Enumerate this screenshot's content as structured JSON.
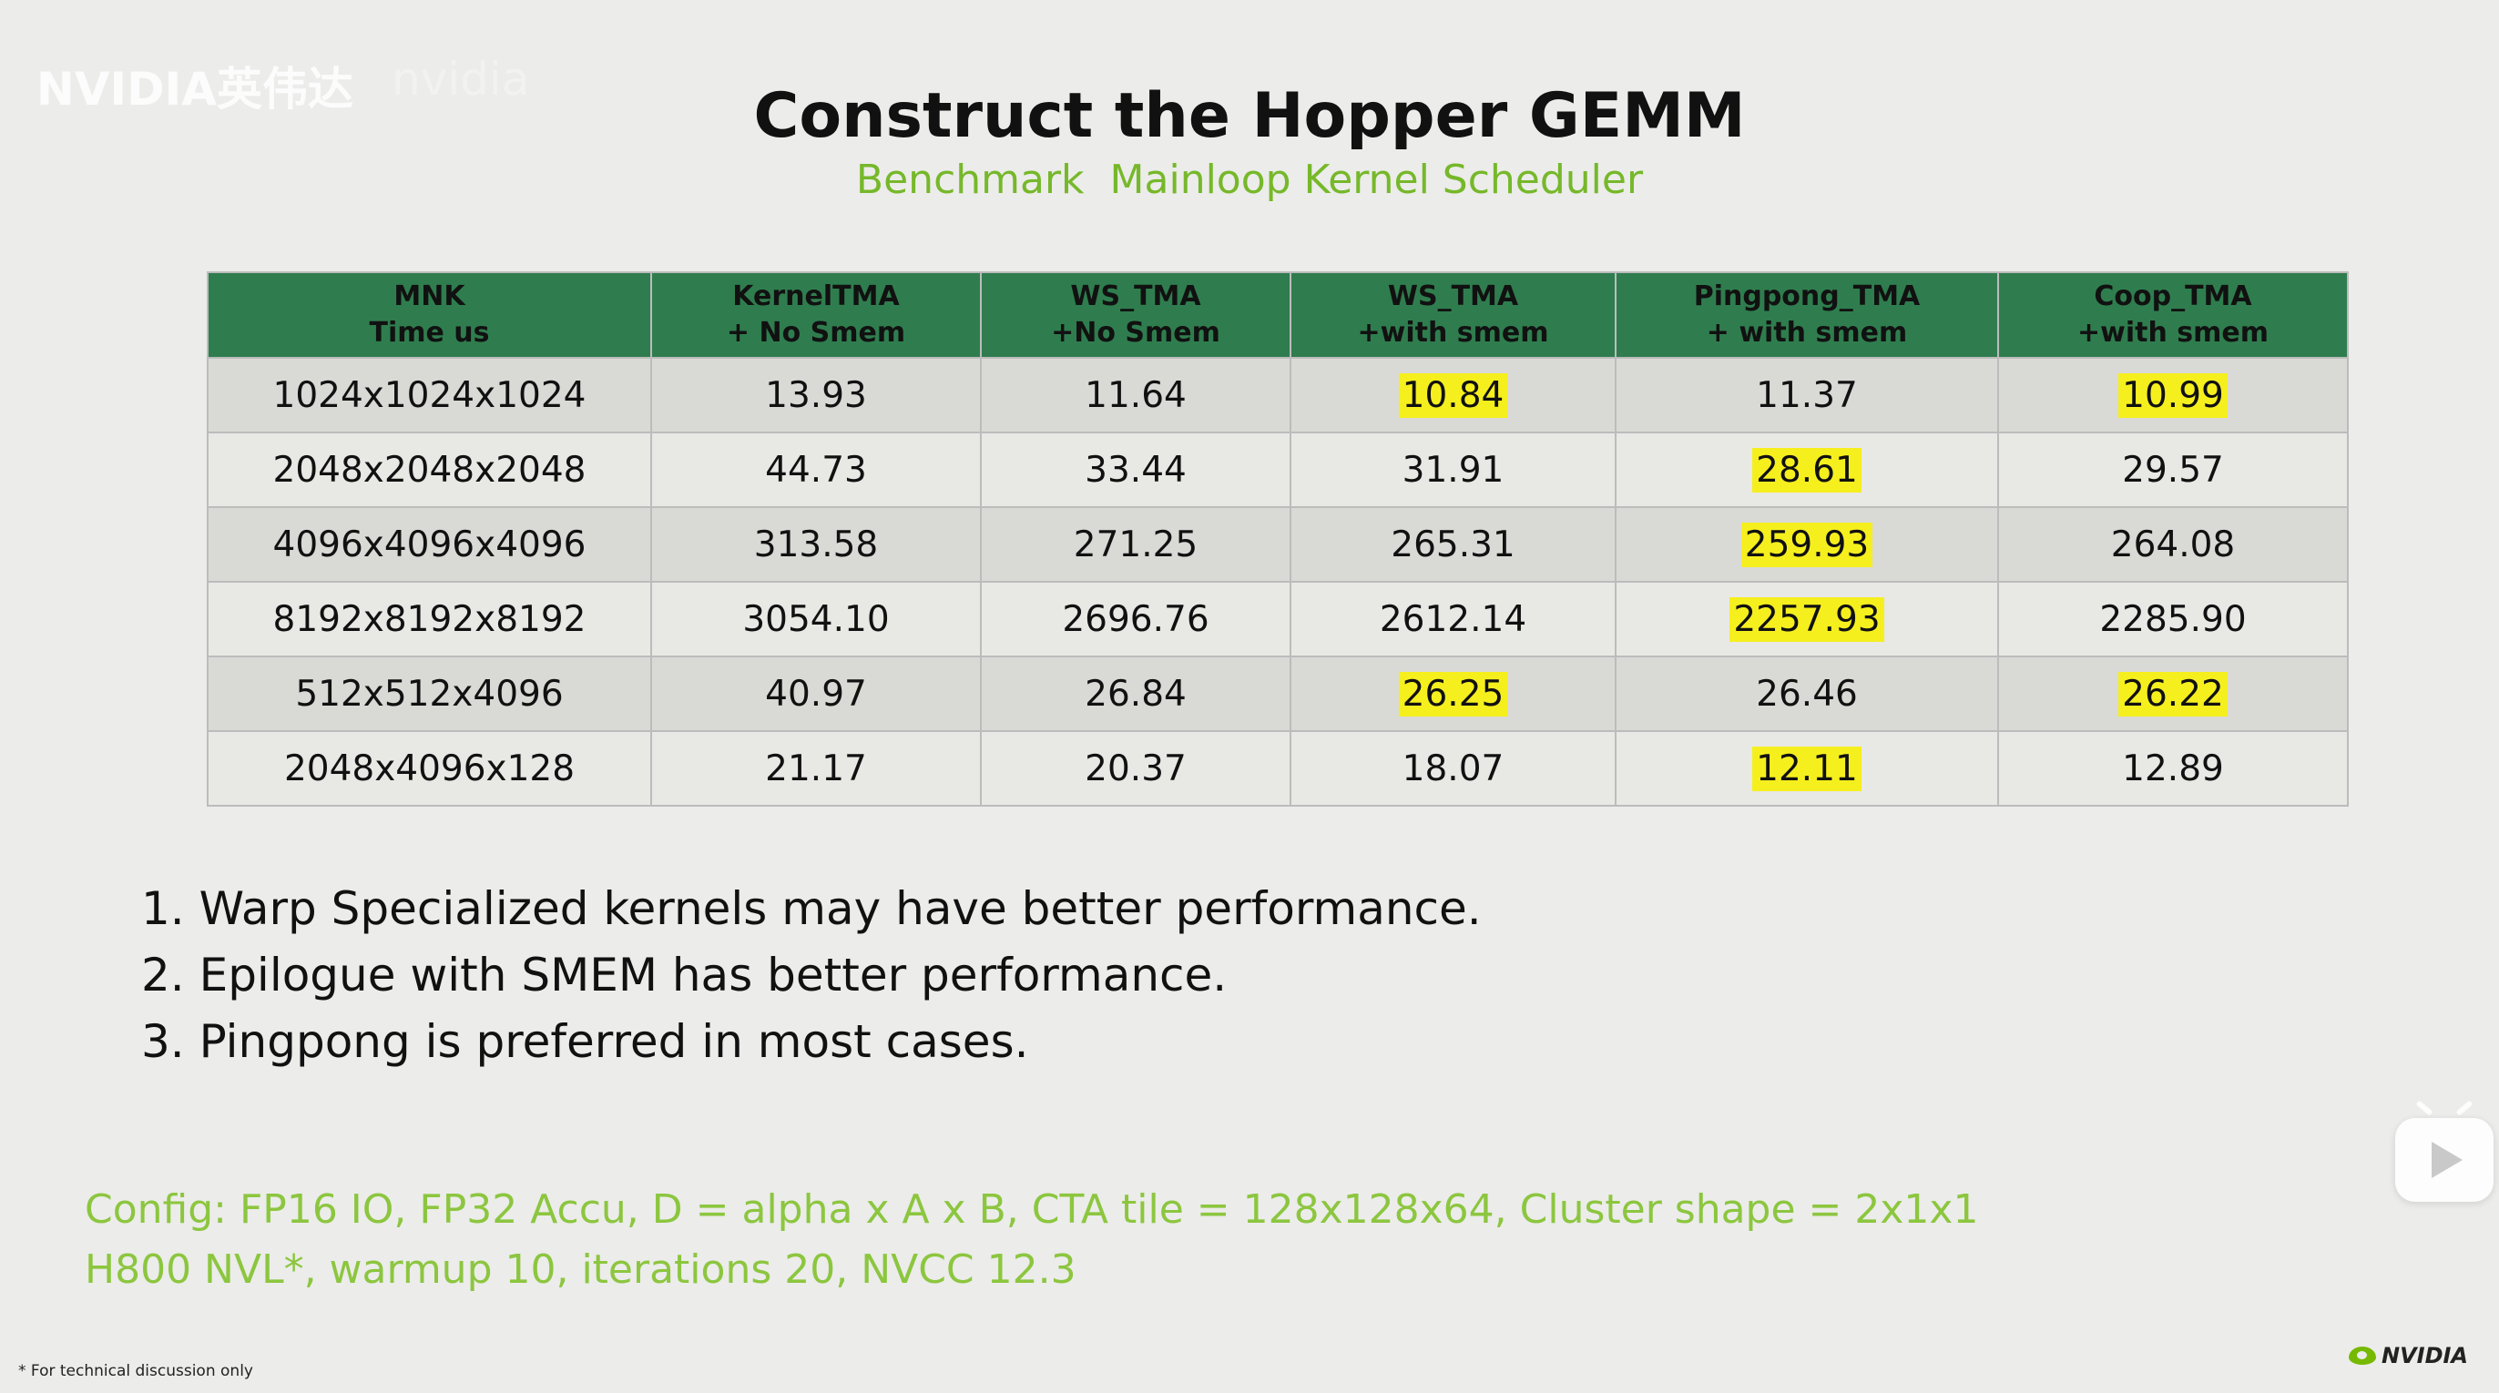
{
  "watermark": {
    "brand": "NVIDIA英伟达",
    "faint_text": "nvidia"
  },
  "title": "Construct the Hopper GEMM",
  "subtitle": {
    "part1": "Benchmark",
    "part2": "Mainloop Kernel Scheduler"
  },
  "table": {
    "headers": [
      {
        "line1": "MNK",
        "line2": "Time us"
      },
      {
        "line1": "KernelTMA",
        "line2": "+ No Smem"
      },
      {
        "line1": "WS_TMA",
        "line2": "+No Smem"
      },
      {
        "line1": "WS_TMA",
        "line2": "+with smem"
      },
      {
        "line1": "Pingpong_TMA",
        "line2": "+ with smem"
      },
      {
        "line1": "Coop_TMA",
        "line2": "+with smem"
      }
    ],
    "rows": [
      {
        "mnk": "1024x1024x1024",
        "values": [
          "13.93",
          "11.64",
          "10.84",
          "11.37",
          "10.99"
        ],
        "highlight": [
          false,
          false,
          true,
          false,
          true
        ]
      },
      {
        "mnk": "2048x2048x2048",
        "values": [
          "44.73",
          "33.44",
          "31.91",
          "28.61",
          "29.57"
        ],
        "highlight": [
          false,
          false,
          false,
          true,
          false
        ]
      },
      {
        "mnk": "4096x4096x4096",
        "values": [
          "313.58",
          "271.25",
          "265.31",
          "259.93",
          "264.08"
        ],
        "highlight": [
          false,
          false,
          false,
          true,
          false
        ]
      },
      {
        "mnk": "8192x8192x8192",
        "values": [
          "3054.10",
          "2696.76",
          "2612.14",
          "2257.93",
          "2285.90"
        ],
        "highlight": [
          false,
          false,
          false,
          true,
          false
        ]
      },
      {
        "mnk": "512x512x4096",
        "values": [
          "40.97",
          "26.84",
          "26.25",
          "26.46",
          "26.22"
        ],
        "highlight": [
          false,
          false,
          true,
          false,
          true
        ]
      },
      {
        "mnk": "2048x4096x128",
        "values": [
          "21.17",
          "20.37",
          "18.07",
          "12.11",
          "12.89"
        ],
        "highlight": [
          false,
          false,
          false,
          true,
          false
        ]
      }
    ],
    "highlight_color": "#f6ef1e",
    "header_color": "#2f7d4e"
  },
  "notes": [
    "1. Warp Specialized kernels may have better performance.",
    "2. Epilogue with SMEM has better performance.",
    "3. Pingpong is preferred in most cases."
  ],
  "config": {
    "line1": "Config: FP16 IO, FP32 Accu, D = alpha x A x B, CTA tile = 128x128x64, Cluster shape = 2x1x1",
    "line2": "H800 NVL*, warmup 10, iterations 20, NVCC 12.3"
  },
  "footnote": "* For technical discussion only",
  "logo": {
    "text": "NVIDIA",
    "icon": "nvidia-eye-icon"
  },
  "player": {
    "icon": "play-icon"
  },
  "colors": {
    "accent_green": "#76b82a",
    "config_green": "#8cc63f"
  }
}
